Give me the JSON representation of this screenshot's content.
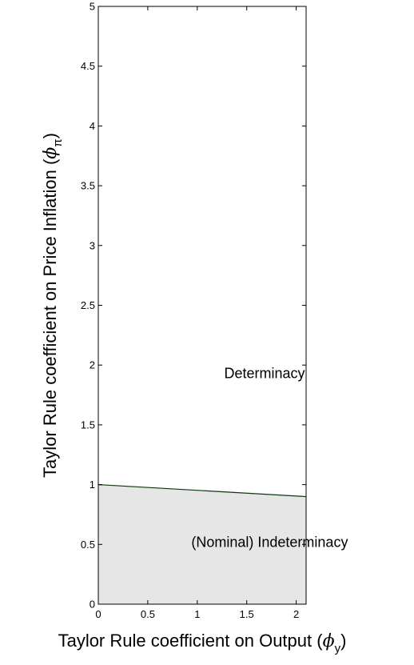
{
  "chart_data": {
    "type": "area",
    "xlabel": {
      "prefix": "Taylor Rule coefficient on Output (",
      "symbol": "ϕ",
      "subscript": "y",
      "suffix": ")"
    },
    "ylabel": {
      "prefix": "Taylor Rule coefficient on Price Inflation (",
      "symbol": "ϕ",
      "subscript": "π",
      "suffix": ")"
    },
    "xlim": [
      0,
      2.1
    ],
    "ylim": [
      0,
      5
    ],
    "x_ticks": [
      "0",
      "0.5",
      "1",
      "1.5",
      "2"
    ],
    "y_ticks": [
      "0",
      "0.5",
      "1",
      "1.5",
      "2",
      "2.5",
      "3",
      "3.5",
      "4",
      "4.5",
      "5"
    ],
    "boundary": {
      "x": [
        0,
        2.1
      ],
      "y": [
        1.0,
        0.9
      ]
    },
    "regions": [
      {
        "label": "Determinacy",
        "x": 1.68,
        "y": 1.93,
        "anchor": "middle"
      },
      {
        "label": "(Nominal) Indeterminacy",
        "x": 0.94,
        "y": 0.52,
        "anchor": "start"
      }
    ],
    "colors": {
      "fill": "#e6e6e6",
      "boundary_line": "#0a3a0a",
      "axes": "#000000"
    },
    "grid": false,
    "legend": "none"
  }
}
